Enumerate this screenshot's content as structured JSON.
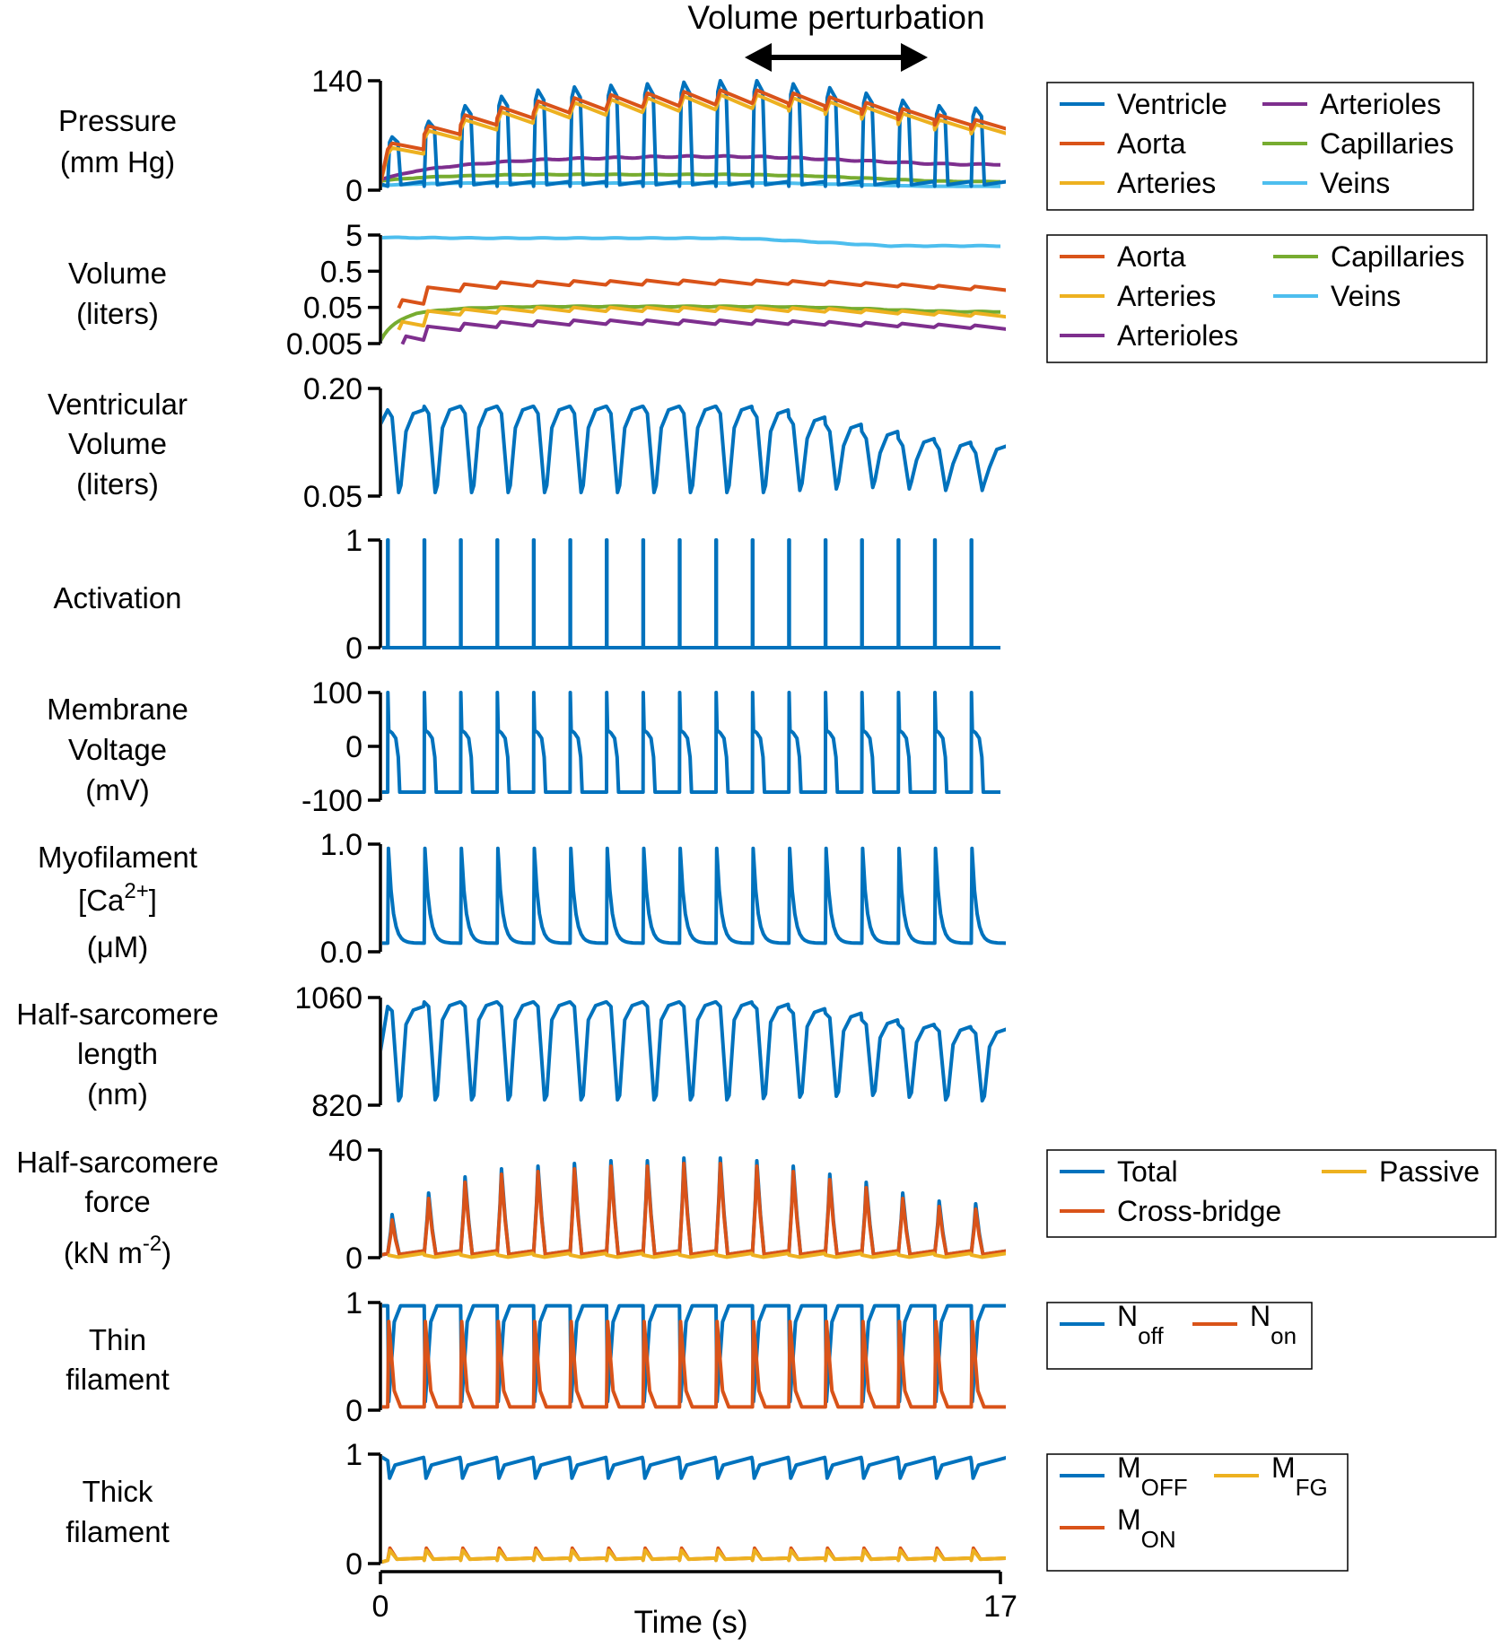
{
  "colors": {
    "blue": "#0072bd",
    "orange": "#d95319",
    "yellow": "#edb120",
    "purple": "#7e2f8e",
    "green": "#77ac30",
    "cyan": "#4dbeee"
  },
  "annotation": {
    "text": "Volume perturbation",
    "start_s": 10,
    "end_s": 15
  },
  "x_axis": {
    "label": "Time (s)",
    "xlim": [
      0,
      17
    ],
    "tick_labels": [
      "0",
      "17"
    ]
  },
  "chart_data": [
    {
      "id": "pressure",
      "type": "line",
      "ylabel_lines": [
        "Pressure",
        "(mm Hg)"
      ],
      "ylim": [
        0,
        140
      ],
      "ticks": [
        {
          "v": 0,
          "label": "0"
        },
        {
          "v": 140,
          "label": "140"
        }
      ],
      "beat_period_s": 1.0,
      "first_beat_s": 0.6,
      "series": [
        {
          "name": "Ventricle",
          "color": "blue",
          "peaks": [
            68,
            88,
            108,
            120,
            128,
            132,
            134,
            136,
            138,
            140,
            140,
            136,
            131,
            124,
            115,
            108,
            105
          ],
          "baseline": 5
        },
        {
          "name": "Aorta",
          "color": "orange",
          "values": [
            60,
            82,
            96,
            106,
            114,
            118,
            122,
            124,
            126,
            128,
            128,
            124,
            119,
            112,
            104,
            96,
            90
          ]
        },
        {
          "name": "Arteries",
          "color": "yellow",
          "values": [
            54,
            76,
            90,
            100,
            108,
            112,
            116,
            118,
            120,
            122,
            122,
            118,
            113,
            106,
            98,
            90,
            84
          ]
        },
        {
          "name": "Arterioles",
          "color": "purple",
          "values": [
            14,
            25,
            31,
            35,
            38,
            40,
            41,
            42,
            43,
            43,
            43,
            42,
            40,
            38,
            36,
            34,
            33
          ]
        },
        {
          "name": "Capillaries",
          "color": "green",
          "values": [
            12,
            16,
            18,
            19,
            20,
            20,
            20,
            20,
            20,
            20,
            20,
            19,
            18,
            16,
            14,
            12,
            11
          ]
        },
        {
          "name": "Veins",
          "color": "cyan",
          "values": [
            6,
            8,
            9,
            9,
            9,
            9,
            9,
            9,
            9,
            9,
            9,
            9,
            8,
            7,
            6,
            5,
            5
          ]
        }
      ],
      "legend": {
        "location": "right",
        "columns": 2
      }
    },
    {
      "id": "volume",
      "type": "line",
      "yscale": "log",
      "ylabel_lines": [
        "Volume",
        "(liters)"
      ],
      "ylim": [
        0.005,
        5
      ],
      "ticks": [
        {
          "v": 5,
          "label": "5"
        },
        {
          "v": 0.5,
          "label": "0.5"
        },
        {
          "v": 0.05,
          "label": "0.05"
        },
        {
          "v": 0.005,
          "label": "0.005"
        }
      ],
      "series": [
        {
          "name": "Aorta",
          "color": "orange",
          "values": [
            0.08,
            0.18,
            0.22,
            0.25,
            0.26,
            0.27,
            0.27,
            0.28,
            0.28,
            0.28,
            0.28,
            0.27,
            0.26,
            0.24,
            0.22,
            0.2,
            0.19
          ]
        },
        {
          "name": "Arteries",
          "color": "yellow",
          "values": [
            0.02,
            0.04,
            0.045,
            0.048,
            0.05,
            0.05,
            0.05,
            0.05,
            0.05,
            0.05,
            0.05,
            0.048,
            0.046,
            0.043,
            0.04,
            0.037,
            0.035
          ]
        },
        {
          "name": "Arterioles",
          "color": "purple",
          "values": [
            0.008,
            0.015,
            0.018,
            0.02,
            0.021,
            0.022,
            0.022,
            0.022,
            0.022,
            0.022,
            0.022,
            0.021,
            0.02,
            0.019,
            0.018,
            0.017,
            0.016
          ]
        },
        {
          "name": "Capillaries",
          "color": "green",
          "values": [
            0.006,
            0.035,
            0.045,
            0.05,
            0.052,
            0.053,
            0.053,
            0.053,
            0.053,
            0.053,
            0.053,
            0.052,
            0.05,
            0.047,
            0.043,
            0.04,
            0.038
          ]
        },
        {
          "name": "Veins",
          "color": "cyan",
          "values": [
            4.3,
            4.2,
            4.15,
            4.1,
            4.1,
            4.1,
            4.1,
            4.1,
            4.1,
            4.1,
            4.0,
            3.6,
            3.2,
            2.8,
            2.5,
            2.5,
            2.5
          ]
        }
      ],
      "legend": {
        "location": "right",
        "columns": 2
      }
    },
    {
      "id": "ventricular-volume",
      "type": "line",
      "ylabel_lines": [
        "Ventricular",
        "Volume",
        "(liters)"
      ],
      "ylim": [
        0.05,
        0.2
      ],
      "ticks": [
        {
          "v": 0.2,
          "label": "0.20"
        },
        {
          "v": 0.05,
          "label": "0.05"
        }
      ],
      "series": [
        {
          "name": "Ventricle",
          "color": "blue",
          "peaks": [
            0.17,
            0.175,
            0.175,
            0.175,
            0.175,
            0.175,
            0.175,
            0.175,
            0.175,
            0.175,
            0.17,
            0.16,
            0.15,
            0.14,
            0.13,
            0.125,
            0.12
          ],
          "troughs": [
            0.055,
            0.055,
            0.055,
            0.055,
            0.055,
            0.055,
            0.055,
            0.055,
            0.055,
            0.055,
            0.055,
            0.058,
            0.06,
            0.062,
            0.06,
            0.058,
            0.058
          ]
        }
      ]
    },
    {
      "id": "activation",
      "type": "line",
      "ylabel_lines": [
        "Activation"
      ],
      "ylim": [
        0,
        1
      ],
      "ticks": [
        {
          "v": 1,
          "label": "1"
        },
        {
          "v": 0,
          "label": "0"
        }
      ],
      "series": [
        {
          "name": "Activation",
          "color": "blue",
          "pulse_height": 1
        }
      ]
    },
    {
      "id": "membrane-voltage",
      "type": "line",
      "ylabel_lines": [
        "Membrane",
        "Voltage",
        "(mV)"
      ],
      "ylim": [
        -100,
        100
      ],
      "ticks": [
        {
          "v": 100,
          "label": "100"
        },
        {
          "v": 0,
          "label": "0"
        },
        {
          "v": -100,
          "label": "-100"
        }
      ],
      "series": [
        {
          "name": "Membrane voltage",
          "color": "blue",
          "rest": -85,
          "spike": 100,
          "plateau": 20
        }
      ]
    },
    {
      "id": "myofilament-calcium",
      "type": "line",
      "ylabel_lines": [
        "Myofilament",
        "[Ca2+]",
        "(μM)"
      ],
      "ylim": [
        0,
        1
      ],
      "ticks": [
        {
          "v": 1,
          "label": "1.0"
        },
        {
          "v": 0,
          "label": "0.0"
        }
      ],
      "series": [
        {
          "name": "Myofilament [Ca2+]",
          "color": "blue",
          "base": 0.08,
          "peak": 0.96
        }
      ]
    },
    {
      "id": "half-sarcomere-length",
      "type": "line",
      "ylabel_lines": [
        "Half-sarcomere",
        "length",
        "(nm)"
      ],
      "ylim": [
        820,
        1060
      ],
      "ticks": [
        {
          "v": 1060,
          "label": "1060"
        },
        {
          "v": 820,
          "label": "820"
        }
      ],
      "series": [
        {
          "name": "Half-sarcomere length",
          "color": "blue",
          "peaks": [
            1040,
            1050,
            1050,
            1050,
            1050,
            1050,
            1050,
            1050,
            1050,
            1050,
            1045,
            1035,
            1025,
            1010,
            1000,
            995,
            990
          ],
          "troughs": [
            830,
            832,
            832,
            832,
            832,
            832,
            832,
            832,
            832,
            832,
            835,
            838,
            840,
            842,
            838,
            832,
            830
          ]
        }
      ]
    },
    {
      "id": "half-sarcomere-force",
      "type": "line",
      "ylabel_lines": [
        "Half-sarcomere",
        "force",
        "(kN m-2)"
      ],
      "ylim": [
        0,
        40
      ],
      "ticks": [
        {
          "v": 40,
          "label": "40"
        },
        {
          "v": 0,
          "label": "0"
        }
      ],
      "series": [
        {
          "name": "Total",
          "color": "blue",
          "peaks": [
            16,
            24,
            30,
            33,
            34,
            35,
            36,
            36,
            37,
            37,
            36,
            34,
            31,
            28,
            24,
            21,
            20
          ]
        },
        {
          "name": "Cross-bridge",
          "color": "orange",
          "peaks": [
            14,
            22,
            28,
            31,
            32,
            33,
            34,
            34,
            35,
            35,
            34,
            32,
            29,
            26,
            22,
            19,
            18
          ]
        },
        {
          "name": "Passive",
          "color": "yellow",
          "level": 1
        }
      ],
      "legend": {
        "location": "right",
        "columns": 2
      }
    },
    {
      "id": "thin-filament",
      "type": "line",
      "ylabel_lines": [
        "Thin",
        "filament"
      ],
      "ylim": [
        0,
        1
      ],
      "ticks": [
        {
          "v": 1,
          "label": "1"
        },
        {
          "v": 0,
          "label": "0"
        }
      ],
      "series": [
        {
          "name": "N_off",
          "color": "blue",
          "high": 0.97,
          "low": 0.03
        },
        {
          "name": "N_on",
          "color": "orange",
          "high": 0.97,
          "low": 0.03
        }
      ],
      "legend_items": [
        {
          "main": "N",
          "sub": "off",
          "color": "blue"
        },
        {
          "main": "N",
          "sub": "on",
          "color": "orange"
        }
      ]
    },
    {
      "id": "thick-filament",
      "type": "line",
      "ylabel_lines": [
        "Thick",
        "filament"
      ],
      "ylim": [
        0,
        1
      ],
      "ticks": [
        {
          "v": 1,
          "label": "1"
        },
        {
          "v": 0,
          "label": "0"
        }
      ],
      "series": [
        {
          "name": "M_OFF",
          "color": "blue",
          "high": 0.98,
          "dip": 0.78
        },
        {
          "name": "M_ON",
          "color": "orange",
          "peak": 0.14
        },
        {
          "name": "M_FG",
          "color": "yellow",
          "peak": 0.12
        }
      ],
      "legend_items": [
        {
          "main": "M",
          "sub": "OFF",
          "color": "blue"
        },
        {
          "main": "M",
          "sub": "FG",
          "color": "yellow"
        },
        {
          "main": "M",
          "sub": "ON",
          "color": "orange"
        }
      ]
    }
  ]
}
